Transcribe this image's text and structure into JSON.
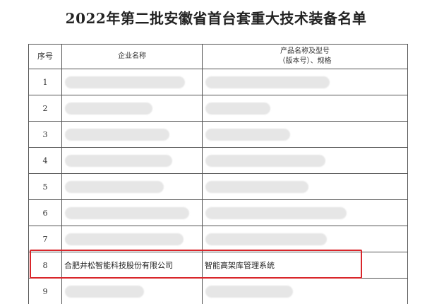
{
  "title": "2022年第二批安徽省首台套重大技术装备名单",
  "table": {
    "headers": [
      "序号",
      "企业名称",
      "产品名称及型号",
      "（版本号）、规格"
    ],
    "rows": [
      {
        "no": "1",
        "company": "",
        "product": "",
        "redacted": true
      },
      {
        "no": "2",
        "company": "",
        "product": "",
        "redacted": true
      },
      {
        "no": "3",
        "company": "",
        "product": "",
        "redacted": true
      },
      {
        "no": "4",
        "company": "",
        "product": "",
        "redacted": true
      },
      {
        "no": "5",
        "company": "",
        "product": "",
        "redacted": true
      },
      {
        "no": "6",
        "company": "",
        "product": "",
        "redacted": true
      },
      {
        "no": "7",
        "company": "",
        "product": "",
        "redacted": true
      },
      {
        "no": "8",
        "company": "合肥井松智能科技股份有限公司",
        "product": "智能高架库管理系统",
        "redacted": false,
        "highlighted": true
      },
      {
        "no": "9",
        "company": "",
        "product": "",
        "redacted": true
      }
    ]
  },
  "highlight_color": "#d9262b"
}
